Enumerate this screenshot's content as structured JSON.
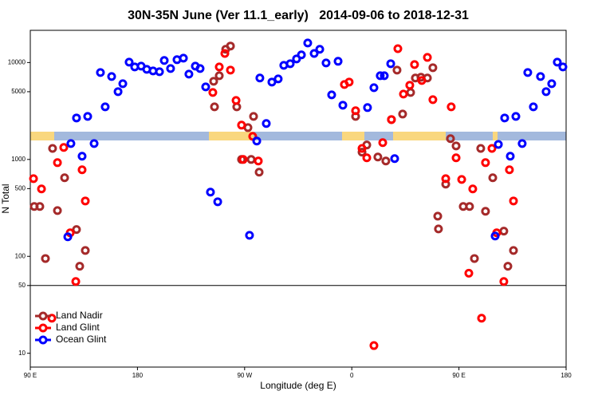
{
  "chart_data": {
    "type": "scatter",
    "title": "30N-35N June (Ver 11.1_early)   2014-09-06 to 2018-12-31",
    "x_label": "Longitude (deg E)",
    "y_label": "N Total",
    "log_y": true,
    "xlim": [
      90,
      540
    ],
    "ylim": [
      7.2,
      21500
    ],
    "xticks": [
      {
        "value": 90,
        "label": "90 E"
      },
      {
        "value": 180,
        "label": "180"
      },
      {
        "value": 270,
        "label": "90 W"
      },
      {
        "value": 360,
        "label": "0"
      },
      {
        "value": 450,
        "label": "90 E"
      },
      {
        "value": 540,
        "label": "180"
      }
    ],
    "yticks": [
      10,
      50,
      100,
      500,
      1000,
      5000,
      10000
    ],
    "reference_line": 50,
    "legend": "bottom-left",
    "series": [
      {
        "name": "Land Nadir",
        "color": "#a52a2a",
        "x": [
          93.3,
          98.0,
          102.7,
          108.7,
          112.8,
          118.8,
          128.8,
          131.5,
          136.2,
          244.0,
          244.7,
          248.7,
          254.1,
          258.1,
          263.4,
          267.4,
          272.8,
          275.5,
          277.5,
          282.2,
          363.2,
          368.6,
          372.6,
          381.9,
          388.6,
          393.3,
          398.0,
          402.7,
          409.4,
          413.4,
          418.1,
          423.5,
          428.1,
          432.2,
          432.8,
          438.9,
          442.9,
          447.6,
          453.6,
          458.9,
          463.0,
          468.3,
          472.3,
          478.4,
          487.7,
          491.1,
          495.8
        ],
        "values": [
          327,
          327,
          95,
          1300,
          297,
          647,
          189,
          79,
          115,
          6410,
          3490,
          7310,
          13700,
          14800,
          3490,
          1000,
          2130,
          1000,
          2780,
          739,
          2780,
          1190,
          1410,
          1060,
          963,
          2580,
          8360,
          2940,
          4910,
          6920,
          7050,
          6920,
          8850,
          260,
          192,
          556,
          1640,
          1380,
          327,
          327,
          95,
          1300,
          292,
          647,
          182,
          79,
          115
        ]
      },
      {
        "name": "Land Glint",
        "color": "#ff0000",
        "x": [
          92.7,
          99.4,
          108.1,
          112.8,
          118.1,
          123.5,
          128.2,
          133.5,
          136.2,
          243.3,
          248.7,
          253.4,
          258.1,
          262.8,
          267.4,
          268.8,
          276.8,
          281.5,
          353.8,
          357.8,
          363.2,
          368.6,
          372.6,
          378.6,
          386.0,
          393.3,
          398.7,
          403.4,
          408.7,
          412.7,
          418.8,
          423.5,
          428.1,
          438.9,
          443.5,
          447.6,
          452.3,
          458.3,
          461.6,
          469.0,
          472.3,
          477.7,
          481.7,
          487.7,
          492.4,
          495.8
        ],
        "values": [
          634,
          496,
          23,
          927,
          1330,
          175,
          55,
          782,
          373,
          4910,
          9010,
          12400,
          8360,
          4060,
          2260,
          1000,
          1730,
          963,
          5940,
          6290,
          3180,
          1300,
          1040,
          12,
          1490,
          2580,
          13900,
          4730,
          5830,
          9530,
          6530,
          11300,
          4140,
          634,
          3490,
          1040,
          622,
          67,
          496,
          23,
          927,
          1300,
          175,
          55,
          782,
          373
        ]
      },
      {
        "name": "Ocean Glint",
        "color": "#0000ff",
        "x": [
          121.5,
          124.1,
          128.8,
          133.5,
          138.2,
          143.6,
          148.9,
          152.9,
          158.3,
          163.7,
          167.7,
          173.0,
          177.7,
          183.1,
          187.8,
          193.1,
          198.5,
          202.5,
          207.8,
          213.2,
          218.6,
          223.2,
          228.6,
          232.6,
          237.3,
          241.3,
          247.4,
          274.1,
          280.2,
          288.2,
          282.8,
          292.9,
          298.2,
          302.9,
          308.3,
          313.6,
          317.7,
          323.0,
          328.4,
          333.1,
          338.4,
          343.1,
          348.5,
          352.5,
          373.2,
          378.6,
          383.9,
          387.3,
          392.7,
          396.0,
          480.4,
          483.1,
          488.4,
          493.1,
          497.8,
          503.1,
          507.8,
          512.5,
          518.5,
          523.2,
          527.9,
          532.6,
          537.3
        ],
        "values": [
          159,
          1460,
          2680,
          1080,
          2780,
          1460,
          7890,
          3490,
          7180,
          5010,
          6050,
          10100,
          9010,
          9180,
          8510,
          8200,
          8040,
          10500,
          8680,
          10700,
          11100,
          7600,
          9180,
          8680,
          5610,
          460,
          366,
          165,
          1550,
          2350,
          6920,
          6290,
          6780,
          9360,
          9730,
          10900,
          12000,
          15900,
          12400,
          13700,
          9900,
          4640,
          10300,
          3630,
          3430,
          5500,
          7310,
          7310,
          9730,
          1020,
          162,
          1430,
          2680,
          1080,
          2780,
          1460,
          7890,
          3490,
          7180,
          5010,
          6050,
          10100,
          9010
        ]
      }
    ]
  }
}
